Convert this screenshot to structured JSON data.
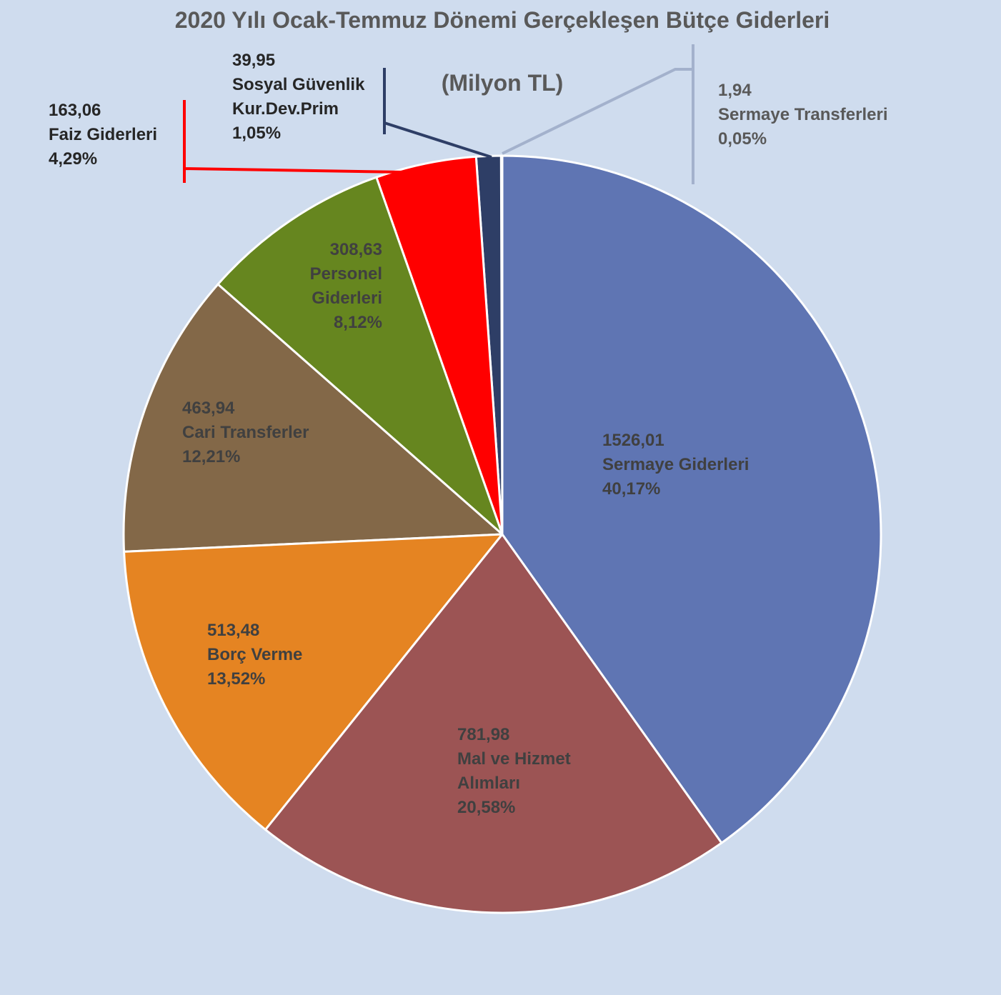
{
  "chart_data": {
    "type": "pie",
    "title": "2020 Yılı Ocak-Temmuz Dönemi Gerçekleşen Bütçe Giderleri",
    "subtitle": "(Milyon TL)",
    "categories": [
      "Sermaye Giderleri",
      "Mal ve Hizmet Alımları",
      "Borç Verme",
      "Cari Transferler",
      "Personel Giderleri",
      "Faiz Giderleri",
      "Sosyal Güvenlik Kur.Dev.Prim",
      "Sermaye Transferleri"
    ],
    "values": [
      1526.01,
      781.98,
      513.48,
      463.94,
      308.63,
      163.06,
      39.95,
      1.94
    ],
    "value_labels": [
      "1526,01",
      "781,98",
      "513,48",
      "463,94",
      "308,63",
      "163,06",
      "39,95",
      "1,94"
    ],
    "percentages": [
      40.17,
      20.58,
      13.52,
      12.21,
      8.12,
      4.29,
      1.05,
      0.05
    ],
    "percentage_labels": [
      "40,17%",
      "20,58%",
      "13,52%",
      "12,21%",
      "8,12%",
      "4,29%",
      "1,05%",
      "0,05%"
    ],
    "colors": [
      "#5f75b3",
      "#9c5454",
      "#e58422",
      "#836848",
      "#66861f",
      "#ff0000",
      "#2e3e66",
      "#a9b8d3"
    ]
  }
}
